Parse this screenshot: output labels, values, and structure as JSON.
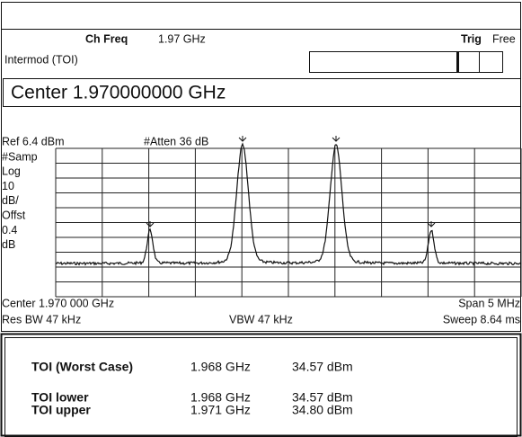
{
  "header": {
    "ch_freq_label": "Ch Freq",
    "ch_freq_value": "1.97 GHz",
    "trig_label": "Trig",
    "trig_value": "Free",
    "mode": "Intermod (TOI)",
    "center": "Center 1.970000000 GHz"
  },
  "trace": {
    "ref": "Ref 6.4 dBm",
    "atten": "#Atten 36 dB",
    "left_labels": [
      "#Samp",
      "Log",
      "10",
      "dB/",
      "Offst",
      "0.4",
      "dB"
    ],
    "center": "Center 1.970 000 GHz",
    "span": "Span 5 MHz",
    "res_bw": "Res BW 47 kHz",
    "vbw": "VBW 47 kHz",
    "sweep": "Sweep 8.64 ms"
  },
  "results": {
    "worst": {
      "label": "TOI (Worst Case)",
      "freq": "1.968 GHz",
      "power": "34.57 dBm"
    },
    "rows": [
      {
        "label": "TOI lower",
        "freq": "1.968 GHz",
        "power": "34.57 dBm"
      },
      {
        "label": "TOI upper",
        "freq": "1.971 GHz",
        "power": "34.80 dBm"
      }
    ]
  }
}
